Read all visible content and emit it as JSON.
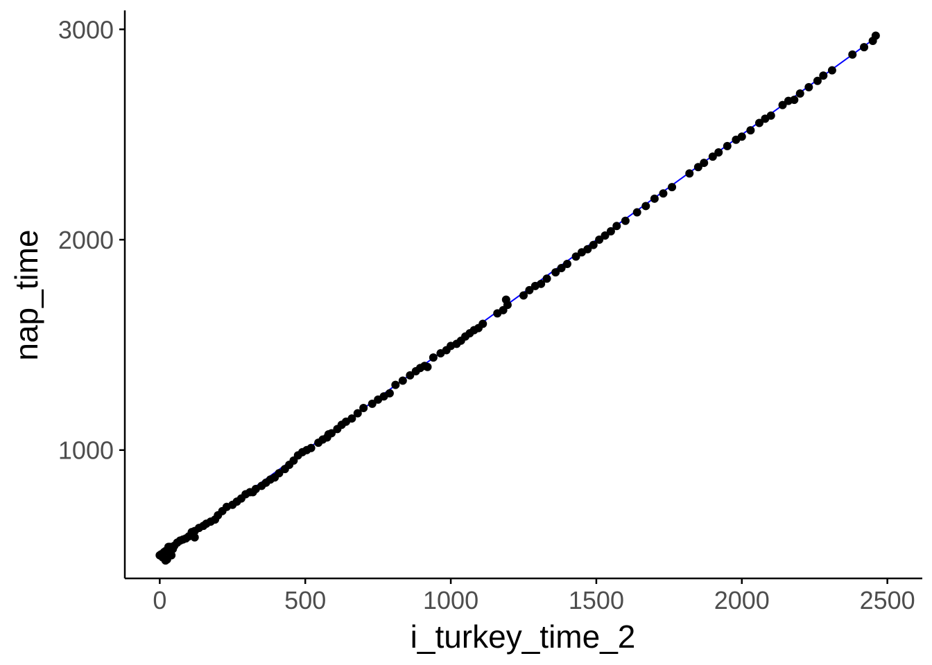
{
  "colors": {
    "points": "#000000",
    "fit_line": "#0000ff",
    "axis": "#000000",
    "tick_text": "#4d4d4d"
  },
  "chart_data": {
    "type": "scatter",
    "title": "",
    "xlabel": "i_turkey_time_2",
    "ylabel": "nap_time",
    "xlim": [
      -120,
      2620
    ],
    "ylim": [
      390,
      3090
    ],
    "x_ticks": [
      0,
      500,
      1000,
      1500,
      2000,
      2500
    ],
    "y_ticks": [
      1000,
      2000,
      3000
    ],
    "x_tick_labels": [
      "0",
      "500",
      "1000",
      "1500",
      "2000",
      "2500"
    ],
    "y_tick_labels": [
      "1000",
      "2000",
      "3000"
    ],
    "grid": false,
    "legend": "none",
    "fit_line": {
      "x": [
        0,
        2460
      ],
      "y": [
        497,
        2960
      ]
    },
    "series": [
      {
        "x": [
          0,
          5,
          10,
          15,
          20,
          25,
          30,
          35,
          40,
          45,
          50,
          60,
          70,
          80,
          90,
          100,
          110,
          120,
          135,
          150,
          160,
          175,
          190,
          200,
          215,
          230,
          250,
          265,
          280,
          295,
          310,
          330,
          350,
          365,
          380,
          395,
          410,
          430,
          445,
          460,
          475,
          490,
          505,
          520,
          545,
          560,
          575,
          590,
          610,
          625,
          640,
          660,
          680,
          700,
          730,
          750,
          770,
          790,
          810,
          835,
          860,
          880,
          895,
          910,
          940,
          965,
          985,
          1000,
          1020,
          1035,
          1050,
          1065,
          1080,
          1095,
          1110,
          1160,
          1180,
          1195,
          1250,
          1270,
          1290,
          1310,
          1330,
          1360,
          1380,
          1400,
          1430,
          1450,
          1470,
          1490,
          1510,
          1530,
          1550,
          1570,
          1600,
          1640,
          1670,
          1700,
          1730,
          1760,
          1820,
          1850,
          1870,
          1900,
          1920,
          1950,
          1980,
          2000,
          2030,
          2060,
          2080,
          2100,
          2140,
          2160,
          2200,
          2230,
          2260,
          2280,
          2310,
          2380,
          2420,
          2450,
          2460,
          2180,
          1190,
          920,
          580,
          320,
          120,
          35,
          20
        ],
        "y": [
          500,
          505,
          490,
          515,
          520,
          480,
          540,
          510,
          500,
          530,
          545,
          560,
          570,
          575,
          580,
          590,
          610,
          615,
          630,
          640,
          650,
          660,
          670,
          690,
          710,
          730,
          740,
          755,
          770,
          790,
          800,
          815,
          830,
          845,
          860,
          870,
          890,
          910,
          930,
          950,
          975,
          990,
          1000,
          1010,
          1035,
          1050,
          1060,
          1080,
          1100,
          1120,
          1135,
          1150,
          1175,
          1200,
          1220,
          1240,
          1255,
          1270,
          1310,
          1330,
          1355,
          1375,
          1390,
          1400,
          1440,
          1460,
          1475,
          1495,
          1505,
          1520,
          1540,
          1555,
          1570,
          1580,
          1600,
          1650,
          1665,
          1690,
          1735,
          1760,
          1780,
          1790,
          1815,
          1845,
          1865,
          1885,
          1920,
          1940,
          1955,
          1975,
          2000,
          2020,
          2040,
          2065,
          2090,
          2130,
          2160,
          2195,
          2220,
          2250,
          2315,
          2345,
          2365,
          2395,
          2415,
          2445,
          2475,
          2490,
          2520,
          2555,
          2575,
          2590,
          2640,
          2660,
          2695,
          2725,
          2755,
          2780,
          2805,
          2880,
          2915,
          2945,
          2970,
          2665,
          1715,
          1395,
          1075,
          800,
          585,
          540,
          475
        ]
      }
    ]
  }
}
